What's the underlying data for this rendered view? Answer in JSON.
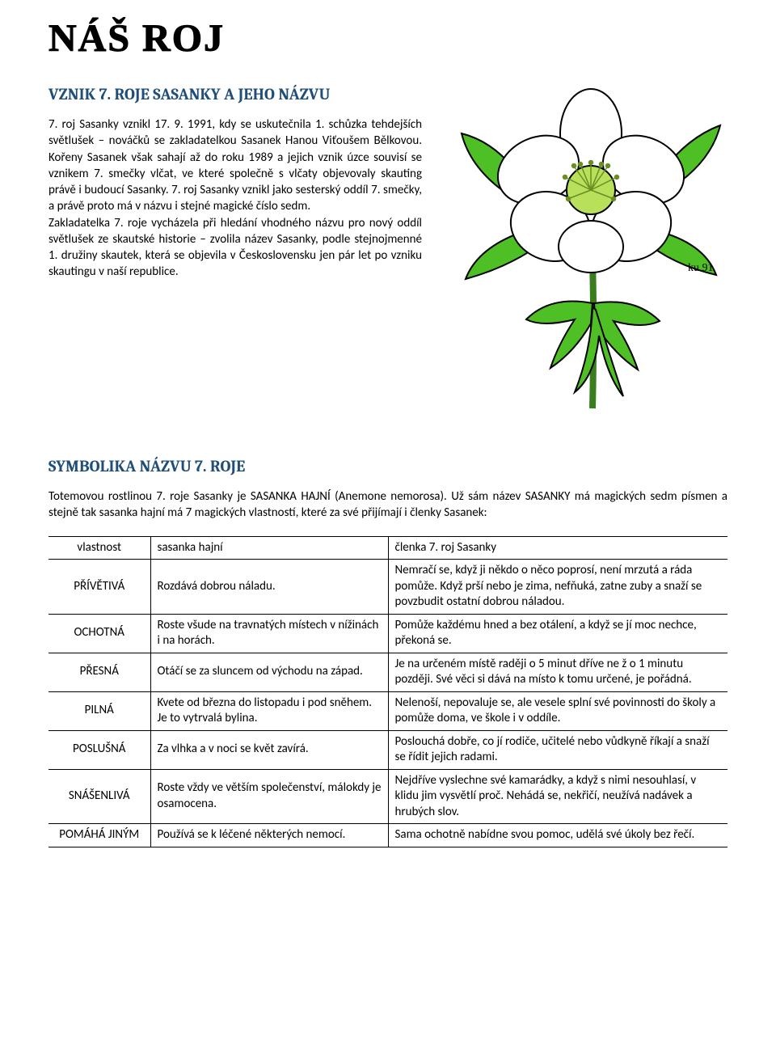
{
  "header": {
    "title": "NÁŠ ROJ"
  },
  "section1": {
    "heading": "VZNIK 7. ROJE SASANKY A JEHO NÁZVU",
    "body": "7. roj Sasanky vznikl 17. 9. 1991, kdy se uskutečnila 1. schůzka tehdejších světlušek – nováčků se zakladatelkou Sasanek Hanou Viťoušem Bělkovou. Kořeny Sasanek však sahají až do roku 1989 a jejich vznik úzce souvisí se vznikem 7. smečky vlčat, ve které společně s vlčaty objevovaly skauting právě i budoucí Sasanky. 7. roj Sasanky vznikl jako sesterský oddíl 7. smečky, a právě proto má v názvu i stejné magické číslo sedm.\nZakladatelka 7. roje vycházela při hledání vhodného názvu pro nový oddíl světlušek ze skautské historie – zvolila název Sasanky, podle stejnojmenné 1. družiny skautek, která se objevila v Československu jen pár let po vzniku skautingu v naší republice."
  },
  "illustration": {
    "alt": "sasanka-flower-illustration",
    "signature": "ku 91",
    "colors": {
      "petal": "#ffffff",
      "petal_stroke": "#000000",
      "leaf": "#4fbf26",
      "leaf_stroke": "#000000",
      "stem": "#3a7d1f",
      "center": "#b8e05a",
      "stamen": "#6b8e23"
    }
  },
  "section2": {
    "heading": "SYMBOLIKA NÁZVU 7. ROJE",
    "intro": "Totemovou rostlinou 7. roje Sasanky je SASANKA HAJNÍ (Anemone nemorosa). Už sám název SASANKY má magických sedm písmen a stejně tak sasanka hajní má 7 magických vlastností, které za své přijímají i členky Sasanek:"
  },
  "table": {
    "headers": {
      "prop": "vlastnost",
      "plant": "sasanka hajní",
      "member": "členka 7. roj Sasanky"
    },
    "rows": [
      {
        "prop": "PŘÍVĚTIVÁ",
        "plant": "Rozdává dobrou náladu.",
        "member": "Nemračí se, když ji někdo o něco poprosí, není mrzutá a ráda pomůže. Když prší nebo je zima, nefňuká, zatne zuby a snaží se povzbudit ostatní dobrou náladou."
      },
      {
        "prop": "OCHOTNÁ",
        "plant": "Roste všude na travnatých místech v nížinách i na horách.",
        "member": "Pomůže každému hned a bez otálení, a když se jí moc nechce, překoná se."
      },
      {
        "prop": "PŘESNÁ",
        "plant": "Otáčí se za sluncem od východu na západ.",
        "member": "Je na určeném místě raději o 5 minut dříve ne ž o 1 minutu později. Své věci si dává na místo k tomu určené, je pořádná."
      },
      {
        "prop": "PILNÁ",
        "plant": "Kvete od března do listopadu i pod sněhem. Je to vytrvalá bylina.",
        "member": "Nelenoší, nepovaluje se, ale vesele splní své povinnosti do školy a pomůže doma, ve škole i v oddíle."
      },
      {
        "prop": "POSLUŠNÁ",
        "plant": "Za vlhka a v noci se květ zavírá.",
        "member": "Poslouchá dobře, co jí rodiče, učitelé nebo vůdkyně říkají a snaží se řídit jejich radami."
      },
      {
        "prop": "SNÁŠENLIVÁ",
        "plant": "Roste vždy ve větším společenství, málokdy je osamocena.",
        "member": "Nejdříve vyslechne své kamarádky, a když s nimi nesouhlasí, v klidu jim vysvětlí proč. Nehádá se, nekřičí, neužívá nadávek a hrubých slov."
      },
      {
        "prop": "POMÁHÁ JINÝM",
        "plant": "Používá se k léčené některých nemocí.",
        "member": "Sama ochotně nabídne svou pomoc, udělá své úkoly bez řečí."
      }
    ]
  }
}
